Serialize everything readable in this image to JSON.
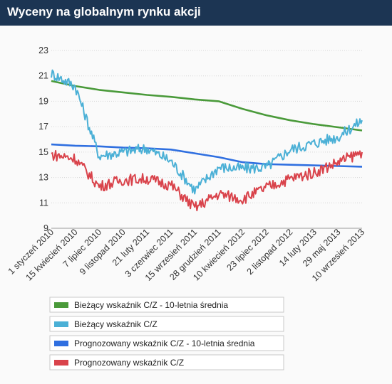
{
  "header": {
    "title": "Wyceny na globalnym rynku akcji"
  },
  "colors": {
    "title_bg": "#1c3553",
    "current_avg": "#4a9a3a",
    "current": "#4bb0d6",
    "forecast_avg": "#2f6fe0",
    "forecast": "#d9434b"
  },
  "chart_data": {
    "type": "line",
    "title": "Wyceny na globalnym rynku akcji",
    "xlabel": "",
    "ylabel": "",
    "ylim": [
      9,
      23
    ],
    "yticks": [
      9,
      11,
      13,
      15,
      17,
      19,
      21,
      23
    ],
    "grid": "horizontal",
    "legend_placement": "bottom",
    "x_tick_labels": [
      "1 styczeń 2010",
      "15 kwiecień 2010",
      "7 lipiec 2010",
      "9 listopad 2010",
      "21 luty 2011",
      "3 czerwiec 2011",
      "15 wrzesień 2011",
      "28 grudzień 2011",
      "10 kwiecień 2012",
      "23 lipiec 2012",
      "2 listopad 2012",
      "14 luty 2013",
      "29 maj 2013",
      "10 wrzesień 2013"
    ],
    "series": [
      {
        "name": "Bieżący wskaźnik C/Z - 10-letnia średnia",
        "color": "#4a9a3a",
        "values": [
          20.6,
          20.2,
          19.9,
          19.7,
          19.5,
          19.35,
          19.15,
          19.0,
          18.4,
          17.9,
          17.5,
          17.2,
          16.95,
          16.7
        ]
      },
      {
        "name": "Bieżący wskaźnik C/Z",
        "color": "#4bb0d6",
        "values": [
          21.2,
          20.2,
          14.7,
          15.0,
          15.3,
          14.3,
          12.0,
          13.8,
          13.7,
          13.8,
          15.2,
          15.7,
          16.2,
          17.5
        ]
      },
      {
        "name": "Prognozowany wskaźnik C/Z - 10-letnia średnia",
        "color": "#2f6fe0",
        "values": [
          15.6,
          15.5,
          15.45,
          15.35,
          15.3,
          15.2,
          14.9,
          14.6,
          14.2,
          14.05,
          14.0,
          13.95,
          13.9,
          13.85
        ]
      },
      {
        "name": "Prognozowany wskaźnik C/Z",
        "color": "#d9434b",
        "values": [
          14.8,
          14.5,
          12.3,
          12.8,
          12.9,
          12.4,
          10.6,
          11.7,
          11.3,
          12.2,
          12.9,
          13.4,
          14.2,
          15.0
        ]
      }
    ]
  },
  "legend": {
    "items": [
      {
        "label": "Bieżący wskaźnik C/Z - 10-letnia średnia",
        "color": "#4a9a3a"
      },
      {
        "label": "Bieżący wskaźnik C/Z",
        "color": "#4bb0d6"
      },
      {
        "label": "Prognozowany wskaźnik C/Z - 10-letnia średnia",
        "color": "#2f6fe0"
      },
      {
        "label": "Prognozowany wskaźnik C/Z",
        "color": "#d9434b"
      }
    ]
  }
}
